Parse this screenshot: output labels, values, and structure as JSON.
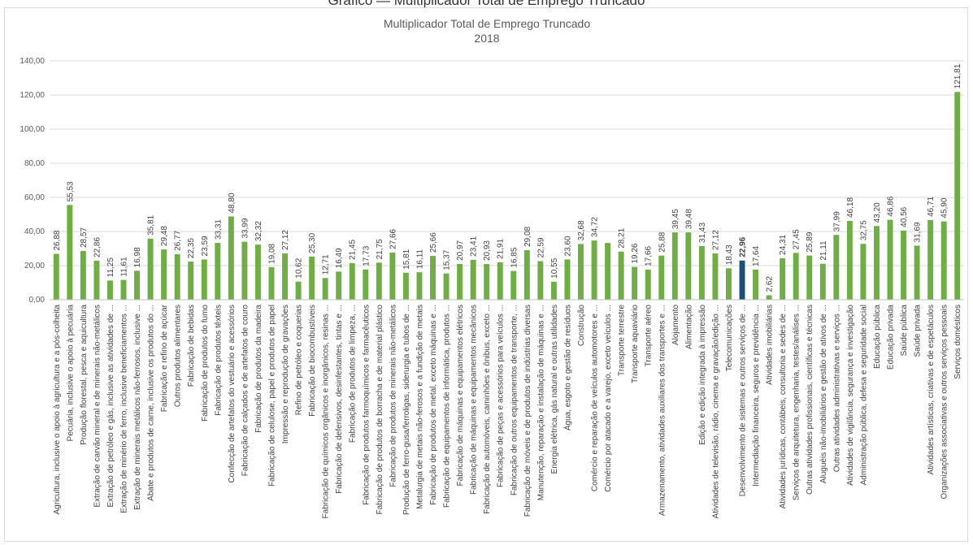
{
  "page_title": "Gráfico — Multiplicador Total de Emprego Truncado",
  "colors": {
    "bar": "#70ad47",
    "highlight": "#1f4e79",
    "grid": "#d9d9d9",
    "text": "#595959"
  },
  "chart_data": {
    "type": "bar",
    "title": "Multiplicador Total de Emprego Truncado",
    "subtitle": "2018",
    "xlabel": "",
    "ylabel": "",
    "ylim": [
      0,
      140
    ],
    "yticks": [
      "0,00",
      "20,00",
      "40,00",
      "60,00",
      "80,00",
      "100,00",
      "120,00",
      "140,00"
    ],
    "grid": true,
    "highlight_category": "Desenvolvimento de sistemas e outros serviços de ...",
    "categories": [
      "Agricultura, inclusive o apoio à agricultura e a pós-colheita",
      "Pecuária, inclusive o apoio à pecuária",
      "Produção florestal, pesca e aquicultura",
      "Extração de carvão mineral e de minerais não-metálicos",
      "Extração de petróleo e gás, inclusive as atividades de ...",
      "Extração de minério de ferro, inclusive beneficiamentos ...",
      "Extração de minerais metálicos não-ferrosos, inclusive ...",
      "Abate e produtos de carne, inclusive os produtos do ...",
      "Fabricação e refino de açúcar",
      "Outros produtos alimentares",
      "Fabricação de bebidas",
      "Fabricação de produtos do fumo",
      "Fabricação de produtos têxteis",
      "Confecção de artefatos do vestuário e acessórios",
      "Fabricação de calçados e de artefatos de couro",
      "Fabricação de produtos da madeira",
      "Fabricação de celulose, papel e produtos de papel",
      "Impressão e reprodução de gravações",
      "Refino de petróleo e coquerias",
      "Fabricação de biocombustíveis",
      "Fabricação de químicos orgânicos e inorgânicos, resinas ...",
      "Fabricação de defensivos, desinfestantes, tintas e ...",
      "Fabricação de produtos de limpeza, ...",
      "Fabricação de produtos farmoquímicos e farmacêuticos",
      "Fabricação de produtos de borracha e de material plástico",
      "Fabricação de produtos de minerais não-metálicos",
      "Produção de ferro-gusa/ferroligas, siderurgia e tubos de ...",
      "Metalurgia de metais não-ferosos e a fundição de metais",
      "Fabricação de produtos de metal, exceto máquinas e ...",
      "Fabricação de equipamentos de informática, produtos ...",
      "Fabricação de máquinas e equipamentos elétricos",
      "Fabricação de máquinas e equipamentos mecânicos",
      "Fabricação de automóveis, caminhões e ônibus, exceto ...",
      "Fabricação de peças e acessórios para veículos ...",
      "Fabricação de outros equipamentos de transporte, ...",
      "Fabricação de móveis e de produtos de indústrias diversas",
      "Manutenção, reparação e instalação de máquinas e ...",
      "Energia elétrica, gás natural e outras utilidades",
      "Água, esgoto e gestão de resíduos",
      "Construção",
      "Comércio e reparação de veículos automotores e ...",
      "Comércio por atacado e a varejo, exceto veículos ...",
      "Transporte terrestre",
      "Transporte aquaviário",
      "Transporte aéreo",
      "Armazenamento, atividades auxiliares dos transportes e ...",
      "Alojamento",
      "Alimentação",
      "Edição e edição integrada à impressão",
      "Atividades de televisão, rádio, cinema e gravação/edição ...",
      "Telecomunicações",
      "Desenvolvimento de sistemas e outros serviços de ...",
      "Intermediação financeira, seguros e previdência ...",
      "Atividades imobiliárias",
      "Atividades jurídicas, contábeis, consultoria e sedes de ...",
      "Serviços de arquitetura, engenharia, testes/análises ...",
      "Outras atividades profissionais, científicas e técnicas",
      "Aluguéis não-imobiliários e gestão de ativos de ...",
      "Outras atividades administrativas e serviços ...",
      "Atividades de vigilância, segurança e investigação",
      "Administração pública, defesa e seguridade social",
      "Educação pública",
      "Educação privada",
      "Saúde pública",
      "Saúde privada",
      "Atividades artísticas, criativas e de espetáculos",
      "Organizações associativas e outros serviços pessoais",
      "Serviços domésticos"
    ],
    "values": [
      26.88,
      55.53,
      28.57,
      22.86,
      11.25,
      11.61,
      16.98,
      35.81,
      29.48,
      26.77,
      22.35,
      23.59,
      33.31,
      48.8,
      33.99,
      32.32,
      19.08,
      27.12,
      10.62,
      25.3,
      12.71,
      16.49,
      21.45,
      17.73,
      21.75,
      27.66,
      15.81,
      16.11,
      25.66,
      15.37,
      20.97,
      23.41,
      20.93,
      21.91,
      16.85,
      29.08,
      22.59,
      10.55,
      23.6,
      32.68,
      34.72,
      33.26,
      28.21,
      19.26,
      17.66,
      25.88,
      39.45,
      39.48,
      31.43,
      27.12,
      18.43,
      22.96,
      17.64,
      2.62,
      24.31,
      27.45,
      25.89,
      21.11,
      37.99,
      46.18,
      32.75,
      43.2,
      46.86,
      40.56,
      31.69,
      46.71,
      45.9,
      121.81
    ],
    "data_labels": [
      "26,88",
      "55,53",
      "28,57",
      "22,86",
      "11,25",
      "11,61",
      "16,98",
      "35,81",
      "29,48",
      "26,77",
      "22,35",
      "23,59",
      "33,31",
      "48,80",
      "33,99",
      "32,32",
      "19,08",
      "27,12",
      "10,62",
      "25,30",
      "12,71",
      "16,49",
      "21,45",
      "17,73",
      "21,75",
      "27,66",
      "15,81",
      "16,11",
      "25,66",
      "15,37",
      "20,97",
      "23,41",
      "20,93",
      "21,91",
      "16,85",
      "29,08",
      "22,59",
      "10,55",
      "23,60",
      "32,68",
      "34,72",
      "",
      "28,21",
      "19,26",
      "17,66",
      "25,88",
      "39,45",
      "39,48",
      "31,43",
      "27,12",
      "18,43",
      "22,96",
      "17,64",
      "2,62",
      "24,31",
      "27,45",
      "25,89",
      "21,11",
      "37,99",
      "46,18",
      "32,75",
      "43,20",
      "46,86",
      "40,56",
      "31,69",
      "46,71",
      "45,90",
      "121,81"
    ]
  }
}
